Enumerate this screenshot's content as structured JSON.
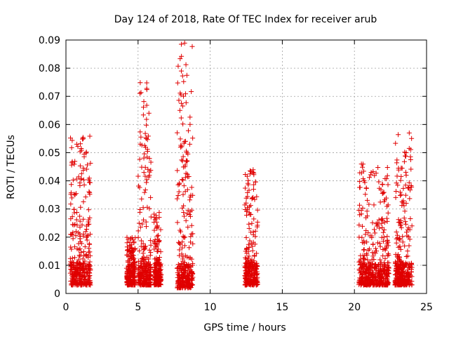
{
  "chart_data": {
    "type": "scatter",
    "title": "Day 124 of 2018, Rate Of TEC Index for receiver arub",
    "xlabel": "GPS time / hours",
    "ylabel": "ROTI / TECUs",
    "xlim": [
      0,
      25
    ],
    "ylim": [
      0,
      0.09
    ],
    "x_ticks": [
      "0",
      "5",
      "10",
      "15",
      "20",
      "25"
    ],
    "y_ticks": [
      "0",
      "0.01",
      "0.02",
      "0.03",
      "0.04",
      "0.05",
      "0.06",
      "0.07",
      "0.08",
      "0.09"
    ],
    "grid": true,
    "marker": "+",
    "marker_color": "#e00000",
    "clusters": [
      {
        "x_start": 0.3,
        "x_end": 1.7,
        "y_max": 0.056,
        "y_base": 0.003
      },
      {
        "x_start": 4.2,
        "x_end": 4.8,
        "y_max": 0.02,
        "y_base": 0.003
      },
      {
        "x_start": 5.0,
        "x_end": 5.9,
        "y_max": 0.075,
        "y_base": 0.003
      },
      {
        "x_start": 6.1,
        "x_end": 6.6,
        "y_max": 0.029,
        "y_base": 0.003
      },
      {
        "x_start": 7.7,
        "x_end": 8.8,
        "y_max": 0.089,
        "y_base": 0.002
      },
      {
        "x_start": 12.4,
        "x_end": 13.3,
        "y_max": 0.044,
        "y_base": 0.003
      },
      {
        "x_start": 20.3,
        "x_end": 22.4,
        "y_max": 0.047,
        "y_base": 0.003
      },
      {
        "x_start": 22.8,
        "x_end": 24.0,
        "y_max": 0.057,
        "y_base": 0.003
      }
    ],
    "outliers": [
      {
        "x": 8.0,
        "y": 0.0885
      },
      {
        "x": 8.0,
        "y": 0.079
      },
      {
        "x": 8.0,
        "y": 0.0675
      },
      {
        "x": 5.6,
        "y": 0.0748
      },
      {
        "x": 5.6,
        "y": 0.0728
      },
      {
        "x": 5.6,
        "y": 0.0668
      },
      {
        "x": 5.5,
        "y": 0.0568
      },
      {
        "x": 23.8,
        "y": 0.057
      },
      {
        "x": 23.8,
        "y": 0.0515
      },
      {
        "x": 23.9,
        "y": 0.0475
      },
      {
        "x": 1.2,
        "y": 0.055
      }
    ]
  }
}
